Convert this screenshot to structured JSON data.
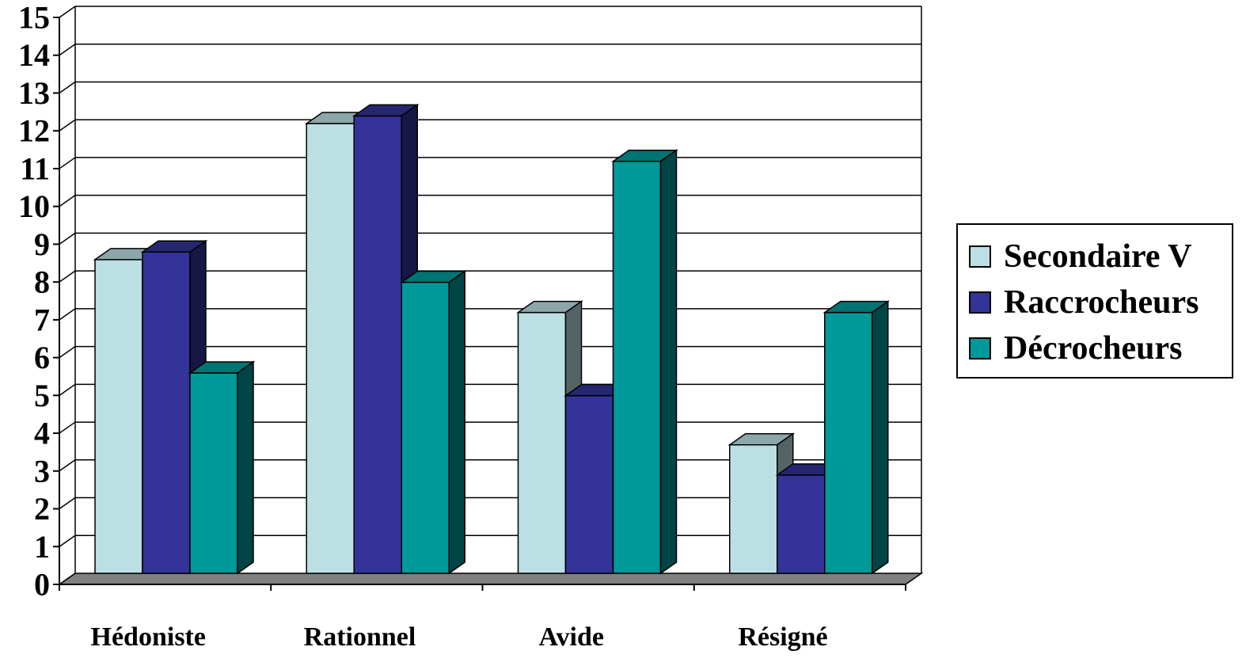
{
  "chart_data": {
    "type": "bar",
    "categories": [
      "Hédoniste",
      "Rationnel",
      "Avide",
      "Résigné"
    ],
    "series": [
      {
        "name": "Secondaire V",
        "values": [
          8.3,
          11.9,
          6.9,
          3.4
        ],
        "color": "#bbdfe3"
      },
      {
        "name": "Raccrocheurs",
        "values": [
          8.5,
          12.1,
          4.7,
          2.6
        ],
        "color": "#333399"
      },
      {
        "name": "Décrocheurs",
        "values": [
          5.3,
          7.7,
          10.9,
          6.9
        ],
        "color": "#009999"
      }
    ],
    "yticks": [
      "0",
      "1",
      "2",
      "3",
      "4",
      "5",
      "6",
      "7",
      "8",
      "9",
      "10",
      "11",
      "12",
      "13",
      "14",
      "15"
    ],
    "ylim": [
      0,
      15
    ],
    "grid": true,
    "legend_position": "right"
  }
}
